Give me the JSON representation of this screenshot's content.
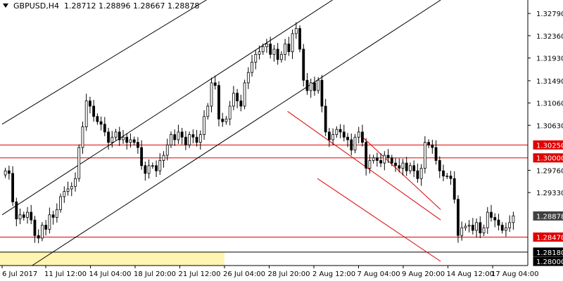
{
  "header": {
    "symbol": "GBPUSD,H4",
    "ohlc": "1.28712 1.28896 1.28667 1.28878"
  },
  "chart_data": {
    "type": "candlestick",
    "title": "GBPUSD,H4",
    "ylim": [
      1.2792,
      1.3305
    ],
    "y_ticks": [
      "1.32790",
      "1.32360",
      "1.31930",
      "1.31490",
      "1.31060",
      "1.30630",
      "1.29760",
      "1.29330"
    ],
    "x_ticks": [
      "6 Jul 2017",
      "11 Jul 12:00",
      "14 Jul 04:00",
      "18 Jul 20:00",
      "21 Jul 12:00",
      "26 Jul 04:00",
      "28 Jul 20:00",
      "2 Aug 12:00",
      "7 Aug 04:00",
      "9 Aug 20:00",
      "14 Aug 12:00",
      "17 Aug 04:00"
    ],
    "x_range": [
      0,
      175
    ],
    "closes": [
      1.2975,
      1.297,
      1.2915,
      1.2882,
      1.289,
      1.2885,
      1.2895,
      1.288,
      1.285,
      1.2845,
      1.287,
      1.2862,
      1.289,
      1.2885,
      1.29,
      1.2925,
      1.2935,
      1.294,
      1.2945,
      1.296,
      1.302,
      1.306,
      1.311,
      1.31,
      1.308,
      1.307,
      1.3065,
      1.305,
      1.303,
      1.304,
      1.305,
      1.3035,
      1.304,
      1.303,
      1.3035,
      1.303,
      1.302,
      1.2985,
      1.297,
      1.2985,
      1.2985,
      1.2975,
      1.2995,
      1.3005,
      1.3025,
      1.3045,
      1.3035,
      1.305,
      1.304,
      1.3025,
      1.3045,
      1.304,
      1.303,
      1.3045,
      1.308,
      1.31,
      1.3145,
      1.314,
      1.3075,
      1.307,
      1.3075,
      1.31,
      1.3125,
      1.311,
      1.31,
      1.3145,
      1.3165,
      1.3185,
      1.32,
      1.3205,
      1.3215,
      1.322,
      1.32,
      1.321,
      1.319,
      1.32,
      1.322,
      1.3205,
      1.324,
      1.325,
      1.321,
      1.315,
      1.313,
      1.3145,
      1.313,
      1.315,
      1.31,
      1.305,
      1.3035,
      1.3045,
      1.3055,
      1.305,
      1.304,
      1.3035,
      1.3015,
      1.304,
      1.305,
      1.303,
      1.298,
      1.2995,
      1.3,
      1.2995,
      1.299,
      1.3005,
      1.3,
      1.299,
      1.2985,
      1.298,
      1.299,
      1.2975,
      1.2985,
      1.2975,
      1.296,
      1.298,
      1.303,
      1.3025,
      1.302,
      1.2995,
      1.2975,
      1.2965,
      1.2965,
      1.296,
      1.292,
      1.285,
      1.2865,
      1.2868,
      1.287,
      1.286,
      1.2875,
      1.2855,
      1.2865,
      1.2895,
      1.2885,
      1.288,
      1.287,
      1.286,
      1.2865,
      1.2875,
      1.2888
    ],
    "price_labels": [
      {
        "value": 1.3025,
        "text": "1.30250",
        "kind": "red"
      },
      {
        "value": 1.3,
        "text": "1.30000",
        "kind": "red"
      },
      {
        "value": 1.28878,
        "text": "1.28878",
        "kind": "current"
      },
      {
        "value": 1.2847,
        "text": "1.28470",
        "kind": "red"
      },
      {
        "value": 1.2818,
        "text": "1.28180",
        "kind": "black"
      },
      {
        "value": 1.28,
        "text": "1.28000",
        "kind": "black"
      }
    ],
    "horizontal_levels": [
      1.3025,
      1.3,
      1.2847,
      1.2818
    ],
    "colors": {
      "candle": "#000000",
      "resistance": "#e00000",
      "channel": "#000000",
      "highlight": "#fff5b0",
      "current_label_bg": "#404040"
    }
  }
}
